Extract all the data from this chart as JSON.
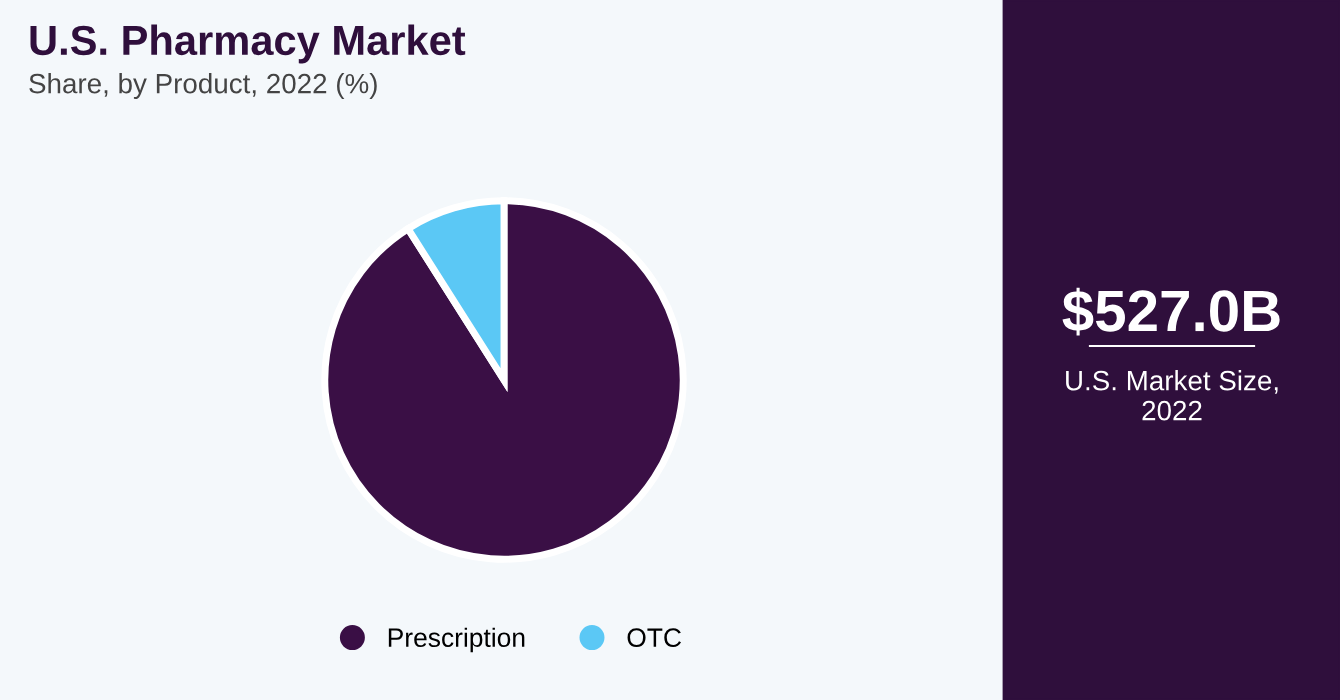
{
  "chart_data": {
    "type": "pie",
    "title": "U.S. Pharmacy Market",
    "subtitle": "Share, by Product, 2022 (%)",
    "categories": [
      "Prescription",
      "OTC"
    ],
    "values": [
      91,
      9
    ],
    "colors": [
      "#3a0f45",
      "#5bc8f5"
    ],
    "legend": "bottom",
    "annotations": [
      "$527.0B",
      "U.S. Market Size,\n2022"
    ]
  }
}
